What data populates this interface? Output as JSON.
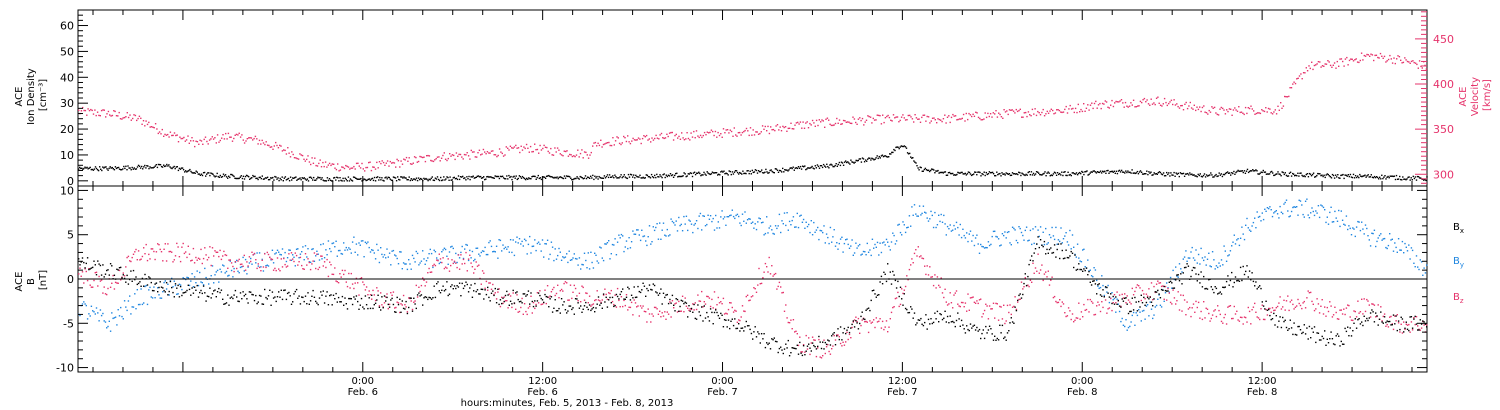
{
  "colors": {
    "black": "#000000",
    "pink": "#e5336b",
    "blue": "#1f86e0"
  },
  "chart_data": [
    {
      "type": "scatter",
      "panel": "top",
      "left_axis": {
        "label_lines": [
          "ACE",
          "Ion Density",
          "[cm⁻³]"
        ],
        "range": [
          -2,
          66
        ],
        "ticks": [
          0,
          10,
          20,
          30,
          40,
          50,
          60
        ]
      },
      "right_axis": {
        "label_lines": [
          "ACE",
          "Velocity",
          "[km/s]"
        ],
        "range": [
          287,
          482
        ],
        "ticks": [
          300,
          350,
          400,
          450
        ]
      },
      "x_range_hours": [
        0,
        90
      ],
      "series": [
        {
          "name": "",
          "axis": "left",
          "color": "black",
          "x": [
            0,
            2,
            4,
            6,
            8,
            10,
            12,
            14,
            16,
            18,
            20,
            22,
            24,
            26,
            28,
            30,
            32,
            34,
            36,
            38,
            40,
            42,
            44,
            46,
            48,
            50,
            52,
            54,
            54.5,
            55,
            55.5,
            56,
            57,
            58,
            60,
            62,
            64,
            66,
            68,
            70,
            72,
            74,
            76,
            78,
            80,
            82,
            84,
            86,
            88,
            90
          ],
          "y": [
            5,
            5,
            5.5,
            6,
            3,
            2,
            1.5,
            1,
            1,
            1,
            1,
            1,
            1,
            1.5,
            1.5,
            1.5,
            1.5,
            1.5,
            2,
            2,
            2.5,
            3,
            3.5,
            4,
            5,
            6,
            8,
            10,
            13,
            14,
            10,
            5,
            4,
            3,
            3,
            3,
            3,
            3,
            3.5,
            4,
            3,
            2.5,
            2.5,
            4,
            3,
            2.5,
            2,
            2,
            1.5,
            1
          ]
        },
        {
          "name": "",
          "axis": "right",
          "color": "pink",
          "x": [
            0,
            2,
            4,
            6,
            8,
            10,
            12,
            14,
            16,
            18,
            20,
            22,
            24,
            26,
            28,
            30,
            32,
            34,
            34.5,
            36,
            38,
            40,
            42,
            44,
            46,
            48,
            50,
            52,
            54,
            56,
            58,
            60,
            62,
            64,
            66,
            68,
            70,
            72,
            74,
            76,
            78,
            80,
            82,
            84,
            86,
            88,
            90
          ],
          "y": [
            370,
            368,
            362,
            345,
            335,
            343,
            338,
            326,
            312,
            308,
            310,
            315,
            320,
            322,
            325,
            330,
            326,
            323,
            335,
            338,
            340,
            343,
            345,
            348,
            350,
            355,
            358,
            360,
            362,
            362,
            362,
            365,
            368,
            370,
            372,
            378,
            380,
            382,
            376,
            370,
            372,
            372,
            420,
            423,
            432,
            428,
            420
          ]
        }
      ]
    },
    {
      "type": "scatter",
      "panel": "bottom",
      "left_axis": {
        "label_lines": [
          "ACE",
          "B",
          "[nT]"
        ],
        "range": [
          -10.5,
          10.5
        ],
        "ticks": [
          -10,
          -5,
          0,
          5,
          10
        ]
      },
      "zero_line": true,
      "x_range_hours": [
        0,
        90
      ],
      "series": [
        {
          "name": "Bx",
          "color": "black",
          "x": [
            0,
            2,
            4,
            6,
            8,
            10,
            12,
            14,
            16,
            18,
            20,
            22,
            24,
            26,
            28,
            30,
            32,
            34,
            36,
            38,
            40,
            42,
            44,
            46,
            48,
            50,
            52,
            54,
            56,
            58,
            60,
            62,
            64,
            66,
            68,
            70,
            72,
            74,
            76,
            78,
            80,
            82,
            84,
            86,
            88,
            90
          ],
          "y": [
            2,
            1,
            0,
            -1,
            -1.5,
            -2,
            -2,
            -2,
            -2,
            -2.5,
            -2.5,
            -3,
            -1,
            -1,
            -2,
            -2,
            -3,
            -3,
            -2,
            -1,
            -3,
            -4,
            -5,
            -7,
            -8,
            -7,
            -5,
            1,
            -5,
            -4,
            -6,
            -6,
            4,
            3,
            -1,
            -3,
            -2,
            1,
            -1,
            1,
            -5,
            -6,
            -7,
            -4,
            -5,
            -5
          ]
        },
        {
          "name": "By",
          "color": "blue",
          "x": [
            0,
            2,
            4,
            6,
            8,
            10,
            12,
            14,
            16,
            18,
            20,
            22,
            24,
            26,
            28,
            30,
            32,
            34,
            36,
            38,
            40,
            42,
            44,
            46,
            48,
            50,
            52,
            54,
            56,
            58,
            60,
            62,
            64,
            66,
            68,
            70,
            72,
            74,
            76,
            78,
            80,
            82,
            84,
            86,
            88,
            90
          ],
          "y": [
            -3,
            -5,
            -2,
            -1,
            0,
            1,
            2,
            2.5,
            3,
            4,
            3,
            2,
            2.5,
            3,
            3.5,
            4,
            3,
            2,
            4,
            5,
            6,
            6.5,
            7,
            6,
            7,
            5,
            3,
            4,
            8,
            6,
            4,
            5,
            5,
            5,
            0,
            -5,
            -3,
            3,
            2,
            6,
            8,
            8,
            7,
            5,
            4,
            1
          ]
        },
        {
          "name": "Bz",
          "color": "pink",
          "x": [
            0,
            2,
            4,
            6,
            8,
            10,
            12,
            14,
            16,
            18,
            20,
            22,
            24,
            26,
            28,
            30,
            32,
            34,
            36,
            38,
            40,
            42,
            44,
            46,
            48,
            50,
            52,
            54,
            56,
            58,
            60,
            62,
            64,
            66,
            68,
            70,
            72,
            74,
            76,
            78,
            80,
            82,
            84,
            86,
            88,
            90
          ],
          "y": [
            1,
            -1,
            3,
            3,
            3,
            2,
            2,
            2,
            2,
            0,
            -2,
            -3,
            2,
            2,
            -2,
            -3,
            -1,
            -2,
            -2,
            -4,
            -3,
            -2,
            -4,
            2,
            -7,
            -8,
            -5,
            -5,
            3,
            -2,
            -3,
            -4,
            2,
            -4,
            -3,
            -2,
            -1,
            -3,
            -4,
            -4,
            -3,
            -2,
            -4,
            -3,
            -5,
            -5
          ]
        }
      ]
    }
  ],
  "x_axis": {
    "ticks": [
      {
        "hours": 19,
        "time": "0:00",
        "date": "Feb. 6"
      },
      {
        "hours": 31,
        "time": "12:00",
        "date": "Feb. 6"
      },
      {
        "hours": 43,
        "time": "0:00",
        "date": "Feb. 7"
      },
      {
        "hours": 55,
        "time": "12:00",
        "date": "Feb. 7"
      },
      {
        "hours": 67,
        "time": "0:00",
        "date": "Feb. 8"
      },
      {
        "hours": 79,
        "time": "12:00",
        "date": "Feb. 8"
      }
    ],
    "title": "hours:minutes, Feb.  5, 2013 - Feb.  8, 2013"
  },
  "legend": [
    {
      "label": "B",
      "sub": "x",
      "color": "black"
    },
    {
      "label": "B",
      "sub": "y",
      "color": "blue"
    },
    {
      "label": "B",
      "sub": "z",
      "color": "pink"
    }
  ]
}
